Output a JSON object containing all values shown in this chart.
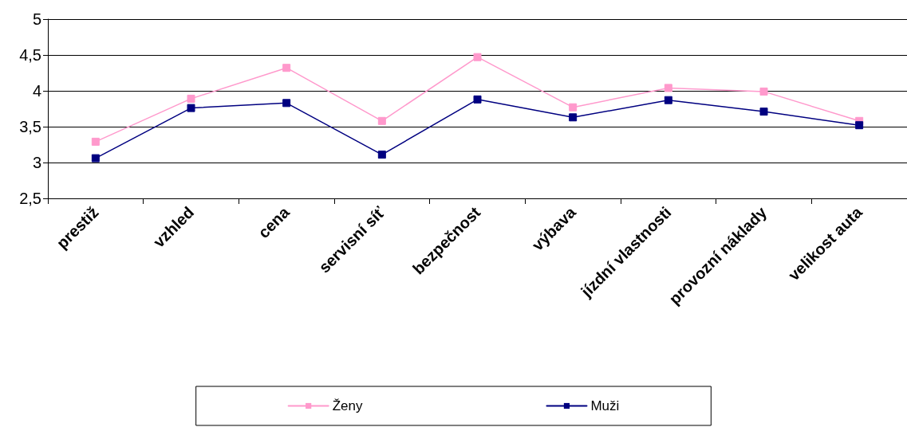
{
  "chart_data": {
    "type": "line",
    "categories": [
      "prestiž",
      "vzhled",
      "cena",
      "servisní síť",
      "bezpečnost",
      "výbava",
      "jízdní vlastnosti",
      "provozní náklady",
      "velikost auta"
    ],
    "series": [
      {
        "name": "Ženy",
        "color": "#ff99cc",
        "values": [
          3.29,
          3.89,
          4.32,
          3.58,
          4.47,
          3.77,
          4.04,
          3.99,
          3.58
        ]
      },
      {
        "name": "Muži",
        "color": "#000080",
        "values": [
          3.06,
          3.76,
          3.83,
          3.11,
          3.88,
          3.63,
          3.87,
          3.71,
          3.52
        ]
      }
    ],
    "ylim": [
      2.5,
      5
    ],
    "yticks": [
      {
        "value": 2.5,
        "label": "2,5"
      },
      3,
      {
        "value": 3.5,
        "label": "3,5"
      },
      4,
      {
        "value": 4.5,
        "label": "4,5"
      },
      5
    ],
    "grid": "y",
    "legend": "bottom",
    "marker": "square",
    "line_style": "solid"
  }
}
